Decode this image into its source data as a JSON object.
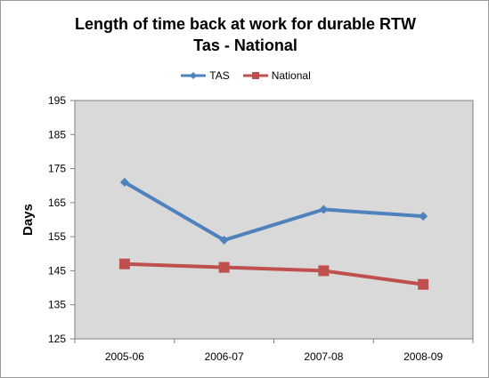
{
  "chart_data": {
    "type": "line",
    "title": "Length of time back at work for durable RTW",
    "subtitle": "Tas - National",
    "xlabel": "",
    "ylabel": "Days",
    "categories": [
      "2005-06",
      "2006-07",
      "2007-08",
      "2008-09"
    ],
    "ylim": [
      125,
      195
    ],
    "yticks": [
      125,
      135,
      145,
      155,
      165,
      175,
      185,
      195
    ],
    "grid": false,
    "legend_position": "top",
    "series": [
      {
        "name": "TAS",
        "values": [
          171,
          154,
          163,
          161
        ],
        "color": "#4f81bd",
        "marker": "diamond"
      },
      {
        "name": "National",
        "values": [
          147,
          146,
          145,
          141
        ],
        "color": "#c0504d",
        "marker": "square"
      }
    ],
    "plot_background": "#d9d9d9"
  }
}
